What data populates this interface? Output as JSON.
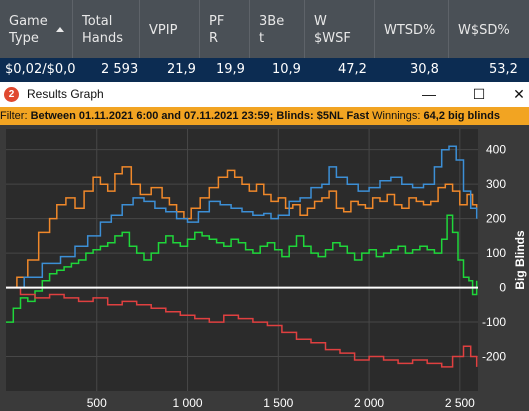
{
  "stats_table": {
    "columns": [
      {
        "label": "Game\nType",
        "sorted": true
      },
      {
        "label": "Total\nHands"
      },
      {
        "label": "VPIP"
      },
      {
        "label": "PF\nR"
      },
      {
        "label": "3Be\nt"
      },
      {
        "label": "W\n$WSF"
      },
      {
        "label": "WTSD%"
      },
      {
        "label": "W$SD%"
      }
    ],
    "row": [
      "$0,02/$0,0",
      "2 593",
      "21,9",
      "19,9",
      "10,9",
      "47,2",
      "30,8",
      "53,2"
    ]
  },
  "window": {
    "title": "Results Graph",
    "app_icon": "2",
    "minimize_glyph": "—",
    "maximize_glyph": "☐",
    "close_glyph": "✕"
  },
  "filter": {
    "prefix": "Filter:",
    "text": "Between 01.11.2021 6:00 and 07.11.2021 23:59; Blinds: $5NL Fast",
    "winnings_label": "Winnings:",
    "winnings_value": "64,2 big blinds"
  },
  "colors": {
    "orange": "#f0882a",
    "blue": "#3c8fd6",
    "green": "#1fd63a",
    "red": "#e04040",
    "zero_line": "#ffffff",
    "plot_bg": "#2b2b2b",
    "grid": "#474747",
    "filter_bg": "#f2a422",
    "header_bg": "#4a5056",
    "row_bg": "#0c2c52"
  },
  "chart_data": {
    "type": "line",
    "ylabel": "Big Blinds",
    "xlabel": "",
    "xlim": [
      0,
      2600
    ],
    "ylim": [
      -300,
      460
    ],
    "x_ticks": [
      500,
      1000,
      1500,
      2000,
      2500
    ],
    "x_tick_labels": [
      "500",
      "1 000",
      "1 500",
      "2 000",
      "2 500"
    ],
    "y_ticks": [
      400,
      300,
      200,
      100,
      0,
      -100,
      -200
    ],
    "y_tick_labels": [
      "400",
      "300",
      "200",
      "100",
      "0",
      "-100",
      "-200"
    ],
    "grid": true,
    "series": [
      {
        "color": "orange",
        "x": [
          0,
          60,
          120,
          180,
          240,
          280,
          330,
          380,
          430,
          480,
          520,
          560,
          600,
          640,
          690,
          740,
          800,
          860,
          900,
          940,
          980,
          1020,
          1070,
          1120,
          1170,
          1220,
          1260,
          1300,
          1340,
          1380,
          1420,
          1460,
          1500,
          1540,
          1580,
          1620,
          1660,
          1700,
          1740,
          1780,
          1820,
          1860,
          1900,
          1940,
          1980,
          2020,
          2060,
          2100,
          2140,
          2180,
          2220,
          2260,
          2300,
          2340,
          2380,
          2420,
          2460,
          2500,
          2540,
          2570,
          2593
        ],
        "y": [
          0,
          30,
          80,
          160,
          200,
          240,
          260,
          230,
          280,
          320,
          300,
          280,
          330,
          350,
          300,
          270,
          290,
          260,
          240,
          220,
          200,
          230,
          260,
          290,
          320,
          340,
          320,
          300,
          280,
          300,
          270,
          250,
          260,
          230,
          240,
          210,
          230,
          250,
          260,
          280,
          230,
          220,
          250,
          240,
          230,
          260,
          250,
          270,
          240,
          230,
          260,
          250,
          240,
          250,
          290,
          300,
          280,
          240,
          270,
          240,
          225
        ]
      },
      {
        "color": "blue",
        "x": [
          0,
          100,
          200,
          300,
          380,
          450,
          520,
          580,
          640,
          700,
          760,
          820,
          880,
          940,
          1000,
          1060,
          1120,
          1180,
          1240,
          1300,
          1360,
          1420,
          1460,
          1500,
          1560,
          1620,
          1680,
          1740,
          1780,
          1820,
          1880,
          1940,
          2000,
          2060,
          2120,
          2180,
          2240,
          2300,
          2360,
          2400,
          2440,
          2480,
          2520,
          2560,
          2593
        ],
        "y": [
          0,
          30,
          70,
          90,
          120,
          150,
          190,
          210,
          240,
          260,
          250,
          230,
          220,
          200,
          190,
          220,
          250,
          240,
          230,
          220,
          210,
          215,
          200,
          210,
          250,
          260,
          290,
          300,
          350,
          320,
          300,
          280,
          290,
          310,
          320,
          300,
          290,
          300,
          350,
          400,
          410,
          370,
          280,
          230,
          200
        ]
      },
      {
        "color": "green",
        "x": [
          0,
          40,
          80,
          120,
          160,
          200,
          240,
          280,
          320,
          360,
          400,
          440,
          480,
          520,
          560,
          600,
          640,
          680,
          720,
          760,
          800,
          840,
          880,
          920,
          960,
          1000,
          1040,
          1080,
          1120,
          1160,
          1200,
          1240,
          1280,
          1320,
          1360,
          1400,
          1440,
          1480,
          1520,
          1560,
          1600,
          1640,
          1680,
          1720,
          1760,
          1800,
          1840,
          1880,
          1920,
          1960,
          2000,
          2040,
          2080,
          2120,
          2160,
          2200,
          2240,
          2280,
          2320,
          2360,
          2400,
          2430,
          2460,
          2490,
          2520,
          2550,
          2570,
          2593
        ],
        "y": [
          -100,
          -60,
          -30,
          -40,
          -10,
          20,
          40,
          50,
          60,
          70,
          80,
          100,
          110,
          120,
          130,
          150,
          160,
          120,
          100,
          80,
          100,
          130,
          150,
          130,
          120,
          140,
          160,
          150,
          140,
          130,
          120,
          140,
          130,
          110,
          100,
          120,
          130,
          110,
          90,
          120,
          150,
          120,
          100,
          90,
          110,
          130,
          120,
          100,
          80,
          100,
          110,
          90,
          100,
          110,
          120,
          100,
          110,
          120,
          110,
          100,
          140,
          210,
          160,
          80,
          30,
          20,
          -20,
          20
        ]
      },
      {
        "color": "red",
        "x": [
          0,
          80,
          160,
          240,
          320,
          400,
          480,
          560,
          640,
          720,
          800,
          880,
          960,
          1040,
          1120,
          1200,
          1280,
          1360,
          1440,
          1520,
          1600,
          1680,
          1760,
          1840,
          1920,
          2000,
          2080,
          2160,
          2240,
          2320,
          2400,
          2460,
          2520,
          2560,
          2593
        ],
        "y": [
          0,
          -20,
          -30,
          -20,
          -30,
          -40,
          -30,
          -50,
          -40,
          -50,
          -60,
          -70,
          -80,
          -90,
          -100,
          -80,
          -90,
          -100,
          -110,
          -130,
          -150,
          -160,
          -180,
          -190,
          -210,
          -200,
          -210,
          -220,
          -210,
          -220,
          -230,
          -200,
          -170,
          -200,
          -230
        ]
      }
    ]
  }
}
